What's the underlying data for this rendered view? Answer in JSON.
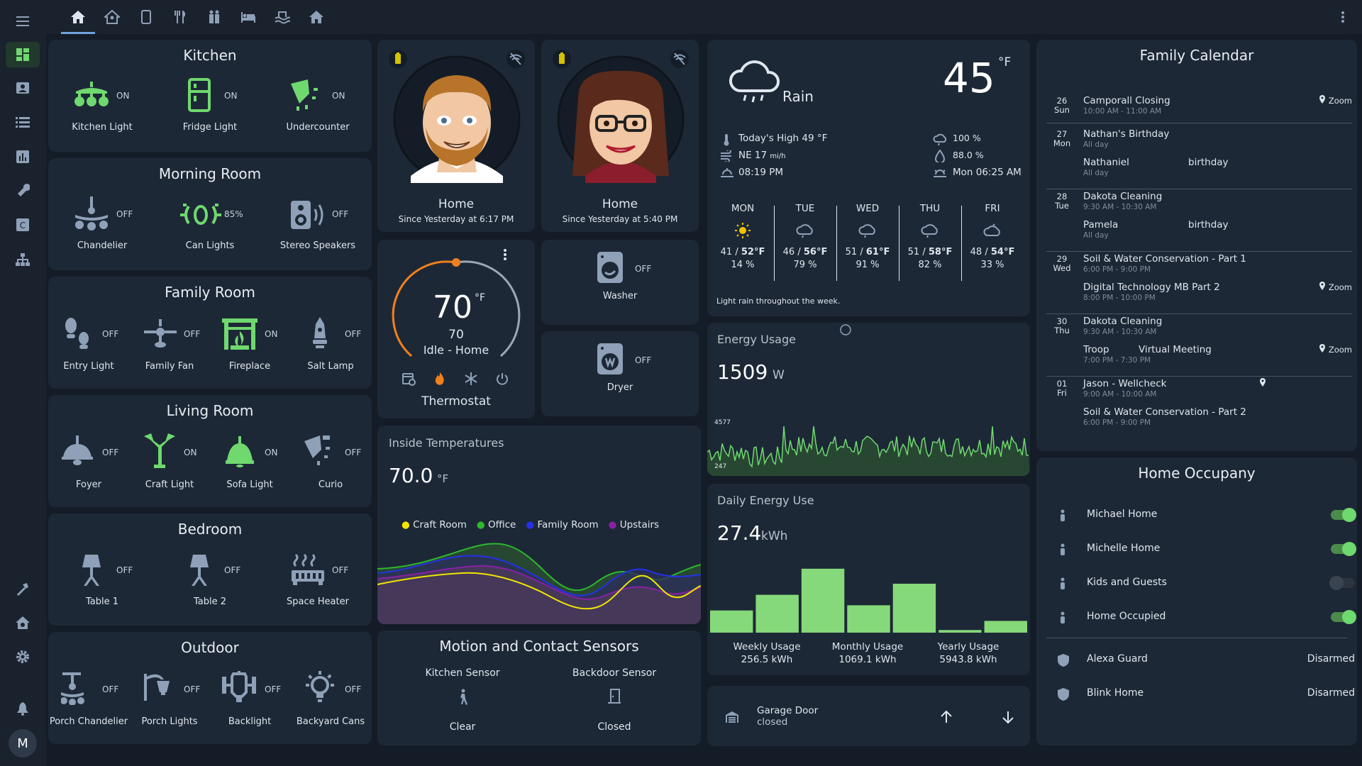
{
  "topbar": {
    "tabs": [
      "home",
      "house-person",
      "phone",
      "restaurant",
      "people",
      "bed",
      "pool",
      "house"
    ]
  },
  "sidebar": {
    "items": [
      "dashboard",
      "account-box",
      "list",
      "chart",
      "wrench",
      "c-box",
      "sitemap"
    ],
    "bottom": [
      "hammer",
      "home-gear",
      "settings",
      "bell"
    ],
    "avatar": "M"
  },
  "kitchen": {
    "title": "Kitchen",
    "items": [
      {
        "label": "Kitchen Light",
        "state": "ON"
      },
      {
        "label": "Fridge Light",
        "state": "ON"
      },
      {
        "label": "Undercounter",
        "state": "ON"
      }
    ]
  },
  "morning": {
    "title": "Morning Room",
    "items": [
      {
        "label": "Chandelier",
        "state": "OFF"
      },
      {
        "label": "Can Lights",
        "state": "85%"
      },
      {
        "label": "Stereo Speakers",
        "state": "OFF"
      }
    ]
  },
  "family": {
    "title": "Family Room",
    "items": [
      {
        "label": "Entry Light",
        "state": "OFF"
      },
      {
        "label": "Family Fan",
        "state": "OFF"
      },
      {
        "label": "Fireplace",
        "state": "ON"
      },
      {
        "label": "Salt Lamp",
        "state": "OFF"
      }
    ]
  },
  "living": {
    "title": "Living Room",
    "items": [
      {
        "label": "Foyer",
        "state": "OFF"
      },
      {
        "label": "Craft Light",
        "state": "ON"
      },
      {
        "label": "Sofa Light",
        "state": "ON"
      },
      {
        "label": "Curio",
        "state": "OFF"
      }
    ]
  },
  "bedroom": {
    "title": "Bedroom",
    "items": [
      {
        "label": "Table 1",
        "state": "OFF"
      },
      {
        "label": "Table 2",
        "state": "OFF"
      },
      {
        "label": "Space Heater",
        "state": "OFF"
      }
    ]
  },
  "outdoor": {
    "title": "Outdoor",
    "items": [
      {
        "label": "Porch Chandelier",
        "state": "OFF"
      },
      {
        "label": "Porch Lights",
        "state": "OFF"
      },
      {
        "label": "Backlight",
        "state": "OFF"
      },
      {
        "label": "Backyard Cans",
        "state": "OFF"
      }
    ]
  },
  "persons": [
    {
      "status": "Home",
      "since": "Since Yesterday at 6:17 PM"
    },
    {
      "status": "Home",
      "since": "Since Yesterday at 5:40 PM"
    }
  ],
  "thermostat": {
    "temp": "70",
    "unit": "°F",
    "target": "70",
    "mode": "Idle - Home",
    "name": "Thermostat",
    "setpoint_fraction": 0.5
  },
  "washer": {
    "label": "Washer",
    "state": "OFF"
  },
  "dryer": {
    "label": "Dryer",
    "state": "OFF"
  },
  "inside_temps": {
    "title": "Inside Temperatures",
    "value": "70.0",
    "unit": "°F",
    "legend": [
      {
        "name": "Craft Room",
        "color": "#f2e600"
      },
      {
        "name": "Office",
        "color": "#2db82d"
      },
      {
        "name": "Family Room",
        "color": "#2431e8"
      },
      {
        "name": "Upstairs",
        "color": "#8a1fa6"
      }
    ]
  },
  "sensors": {
    "title": "Motion and Contact Sensors",
    "items": [
      {
        "name": "Kitchen Sensor",
        "state": "Clear"
      },
      {
        "name": "Backdoor Sensor",
        "state": "Closed"
      }
    ]
  },
  "weather": {
    "condition": "Rain",
    "temp": "45",
    "unit": "°F",
    "high": "Today's High 49 °F",
    "wind": "NE 17",
    "wind_unit": "mi/h",
    "sunset": "08:19 PM",
    "precip": "100 %",
    "humidity": "88.0 %",
    "sunrise": "Mon 06:25 AM",
    "note": "Light rain throughout the week.",
    "forecast": [
      {
        "day": "MON",
        "lo": "41",
        "hi": "52°F",
        "p": "14 %",
        "icon": "sun"
      },
      {
        "day": "TUE",
        "lo": "46",
        "hi": "56°F",
        "p": "79 %",
        "icon": "rain"
      },
      {
        "day": "WED",
        "lo": "51",
        "hi": "61°F",
        "p": "91 %",
        "icon": "rain"
      },
      {
        "day": "THU",
        "lo": "51",
        "hi": "58°F",
        "p": "82 %",
        "icon": "rain"
      },
      {
        "day": "FRI",
        "lo": "48",
        "hi": "54°F",
        "p": "33 %",
        "icon": "partly-cloudy"
      }
    ]
  },
  "energy": {
    "title": "Energy Usage",
    "value": "1509",
    "unit": "W",
    "max": "4577",
    "min": "247"
  },
  "daily_energy": {
    "title": "Daily Energy Use",
    "value": "27.4",
    "unit": "kWh",
    "bars": [
      0.34,
      0.58,
      0.98,
      0.42,
      0.75,
      0.04,
      0.18
    ],
    "stats": [
      {
        "label": "Weekly Usage",
        "value": "256.5 kWh"
      },
      {
        "label": "Monthly Usage",
        "value": "1069.1 kWh"
      },
      {
        "label": "Yearly Usage",
        "value": "5943.8 kWh"
      }
    ]
  },
  "garage": {
    "name": "Garage Door",
    "state": "closed"
  },
  "calendar": {
    "title": "Family Calendar",
    "days": [
      {
        "num": "26",
        "dow": "Sun",
        "events": [
          {
            "title": "Camporall Closing",
            "time": "10:00 AM - 11:00 AM",
            "extra": "",
            "loc": "Zoom"
          }
        ]
      },
      {
        "num": "27",
        "dow": "Mon",
        "events": [
          {
            "title": "Nathan's Birthday",
            "time": "All day",
            "extra": "",
            "loc": ""
          },
          {
            "title": "Nathaniel",
            "time": "All day",
            "extra": "birthday",
            "loc": ""
          }
        ]
      },
      {
        "num": "28",
        "dow": "Tue",
        "events": [
          {
            "title": "Dakota Cleaning",
            "time": "9:30 AM - 10:30 AM",
            "extra": "",
            "loc": ""
          },
          {
            "title": "Pamela",
            "time": "All day",
            "extra": "birthday",
            "loc": ""
          }
        ]
      },
      {
        "num": "29",
        "dow": "Wed",
        "events": [
          {
            "title": "Soil & Water Conservation - Part 1",
            "time": "6:00 PM - 9:00 PM",
            "extra": "",
            "loc": ""
          },
          {
            "title": "Digital Technology MB Part 2",
            "time": "8:00 PM - 10:00 PM",
            "extra": "",
            "loc": "Zoom"
          }
        ]
      },
      {
        "num": "30",
        "dow": "Thu",
        "events": [
          {
            "title": "Dakota Cleaning",
            "time": "9:30 AM - 10:30 AM",
            "extra": "",
            "loc": ""
          },
          {
            "title": "Troop",
            "time": "7:00 PM - 7:30 PM",
            "extra": "Virtual Meeting",
            "loc": "Zoom"
          }
        ]
      },
      {
        "num": "01",
        "dow": "Fri",
        "events": [
          {
            "title": "Jason - Wellcheck",
            "time": "9:00 AM - 10:00 AM",
            "extra": "",
            "loc": " "
          },
          {
            "title": "Soil & Water Conservation - Part 2",
            "time": "6:00 PM - 9:00 PM",
            "extra": "",
            "loc": ""
          }
        ]
      }
    ]
  },
  "occupancy": {
    "title": "Home Occupany",
    "items": [
      {
        "name": "Michael Home",
        "on": true
      },
      {
        "name": "Michelle Home",
        "on": true
      },
      {
        "name": "Kids and Guests",
        "on": false
      },
      {
        "name": "Home Occupied",
        "on": true
      }
    ],
    "alarms": [
      {
        "name": "Alexa Guard",
        "state": "Disarmed"
      },
      {
        "name": "Blink Home",
        "state": "Disarmed"
      }
    ]
  },
  "colors": {
    "green": "#6fd86f",
    "icon": "#8fa1b8",
    "card": "#1d2836",
    "bg": "#141c27"
  }
}
